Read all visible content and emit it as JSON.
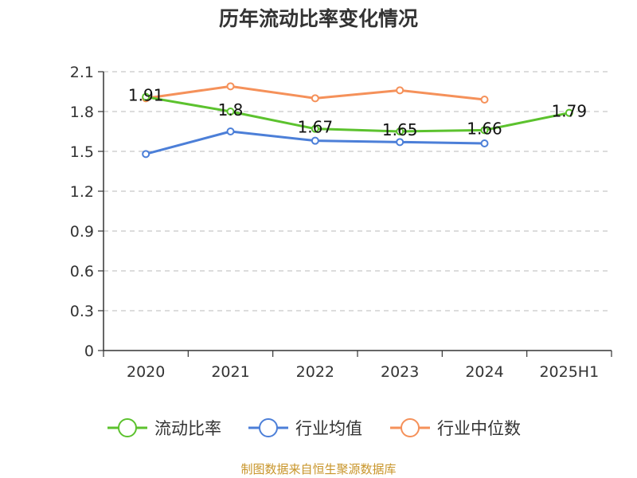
{
  "chart_data": {
    "type": "line",
    "title": "历年流动比率变化情况",
    "categories": [
      "2020",
      "2021",
      "2022",
      "2023",
      "2024",
      "2025H1"
    ],
    "ylim": [
      0,
      2.1
    ],
    "yticks": [
      "0",
      "0.3",
      "0.6",
      "0.9",
      "1.2",
      "1.5",
      "1.8",
      "2.1"
    ],
    "grid": true,
    "legend_position": "bottom",
    "series": [
      {
        "name": "流动比率",
        "color": "#5cc22e",
        "values": [
          1.91,
          1.8,
          1.67,
          1.65,
          1.66,
          1.79
        ],
        "labels": [
          "1.91",
          "1.8",
          "1.67",
          "1.65",
          "1.66",
          "1.79"
        ]
      },
      {
        "name": "行业均值",
        "color": "#4c7fd8",
        "values": [
          1.48,
          1.65,
          1.58,
          1.57,
          1.56,
          null
        ]
      },
      {
        "name": "行业中位数",
        "color": "#f5915a",
        "values": [
          1.9,
          1.99,
          1.9,
          1.96,
          1.89,
          null
        ]
      }
    ]
  },
  "footer": {
    "source": "制图数据来自恒生聚源数据库"
  }
}
